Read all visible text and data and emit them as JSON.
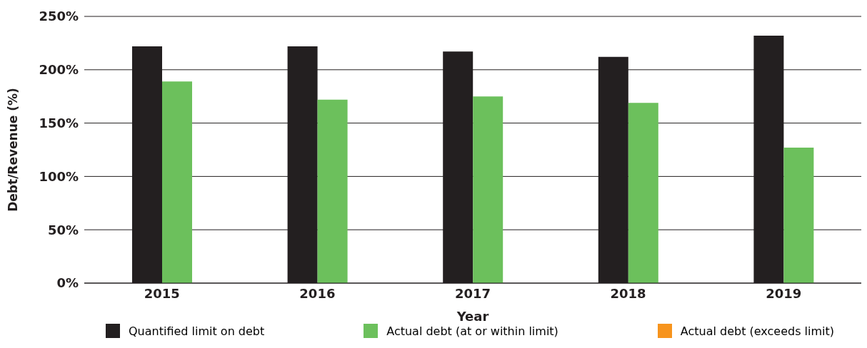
{
  "chart_data": {
    "type": "bar",
    "xlabel": "Year",
    "ylabel": "Debt/Revenue (%)",
    "categories": [
      "2015",
      "2016",
      "2017",
      "2018",
      "2019"
    ],
    "series": [
      {
        "name": "Quantified limit on debt",
        "color": "#231f20",
        "values": [
          222,
          222,
          217,
          212,
          232
        ]
      },
      {
        "name": "Actual debt (at or within limit)",
        "color": "#6cc05c",
        "values": [
          189,
          172,
          175,
          169,
          127
        ]
      },
      {
        "name": "Actual debt (exceeds limit)",
        "color": "#f7941d",
        "values": [
          null,
          null,
          null,
          null,
          null
        ]
      }
    ],
    "ylim": [
      0,
      250
    ],
    "yticks": [
      {
        "value": 0,
        "label": "0%"
      },
      {
        "value": 50,
        "label": "50%"
      },
      {
        "value": 100,
        "label": "100%"
      },
      {
        "value": 150,
        "label": "150%"
      },
      {
        "value": 200,
        "label": "200%"
      },
      {
        "value": 250,
        "label": "250%"
      }
    ],
    "grid": "y",
    "legend": "bottom"
  }
}
